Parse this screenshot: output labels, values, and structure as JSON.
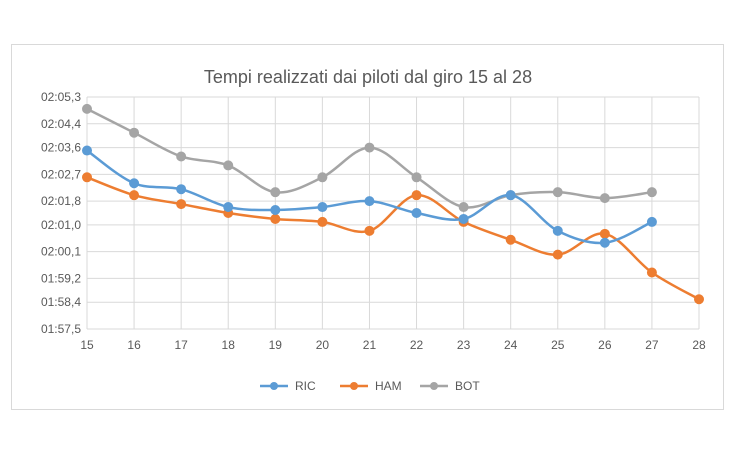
{
  "chart_data": {
    "type": "line",
    "title": "Tempi realizzati dai piloti dal giro 15 al 28",
    "xlabel": "",
    "ylabel": "",
    "x": [
      15,
      16,
      17,
      18,
      19,
      20,
      21,
      22,
      23,
      24,
      25,
      26,
      27,
      28
    ],
    "x_tick_labels": [
      "15",
      "16",
      "17",
      "18",
      "19",
      "20",
      "21",
      "22",
      "23",
      "24",
      "25",
      "26",
      "27",
      "28"
    ],
    "y_unit": "seconds (min:ss)",
    "ylim": [
      117.5,
      125.3
    ],
    "y_ticks": [
      117.5,
      118.4,
      119.2,
      120.1,
      121.0,
      121.8,
      122.7,
      123.6,
      124.4,
      125.3
    ],
    "y_tick_labels": [
      "01:57,5",
      "01:58,4",
      "01:59,2",
      "02:00,1",
      "02:01,0",
      "02:01,8",
      "02:02,7",
      "02:03,6",
      "02:04,4",
      "02:05,3"
    ],
    "grid": true,
    "legend_position": "bottom",
    "series": [
      {
        "name": "RIC",
        "color": "#5B9BD5",
        "values": [
          123.5,
          122.4,
          122.2,
          121.6,
          121.5,
          121.6,
          121.8,
          121.4,
          121.2,
          122.0,
          120.8,
          120.4,
          121.1,
          null
        ]
      },
      {
        "name": "HAM",
        "color": "#ED7D31",
        "values": [
          122.6,
          122.0,
          121.7,
          121.4,
          121.2,
          121.1,
          120.8,
          122.0,
          121.1,
          120.5,
          120.0,
          120.7,
          119.4,
          118.5
        ]
      },
      {
        "name": "BOT",
        "color": "#A5A5A5",
        "values": [
          124.9,
          124.1,
          123.3,
          123.0,
          122.1,
          122.6,
          123.6,
          122.6,
          121.6,
          122.0,
          122.1,
          121.9,
          122.1,
          null
        ]
      }
    ]
  }
}
